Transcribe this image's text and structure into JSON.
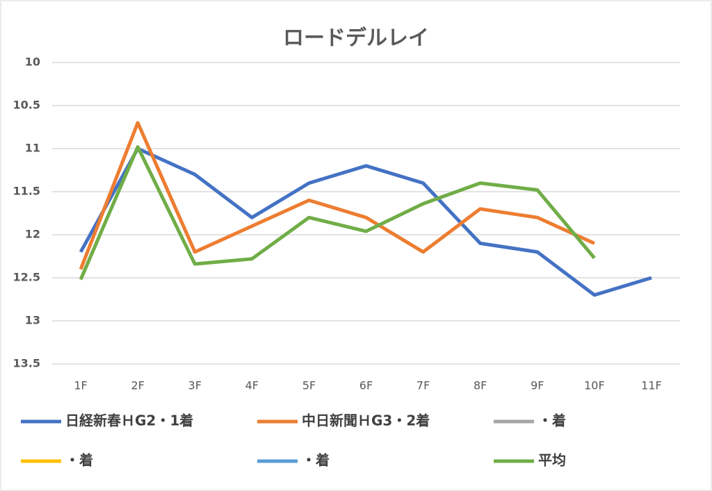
{
  "chart_data": {
    "type": "line",
    "title": "ロードデルレイ",
    "categories": [
      "1F",
      "2F",
      "3F",
      "4F",
      "5F",
      "6F",
      "7F",
      "8F",
      "9F",
      "10F",
      "11F"
    ],
    "series": [
      {
        "name": "日経新春ＨG2・1着",
        "color": "#4472c4",
        "values": [
          12.2,
          11.0,
          11.3,
          11.8,
          11.4,
          11.2,
          11.4,
          12.1,
          12.2,
          12.7,
          12.5
        ]
      },
      {
        "name": "中日新聞ＨG3・2着",
        "color": "#ed7d31",
        "values": [
          12.4,
          10.7,
          12.2,
          11.9,
          11.6,
          11.8,
          12.2,
          11.7,
          11.8,
          12.1,
          null
        ]
      },
      {
        "name": "・着",
        "color": "#a5a5a5",
        "values": [
          null,
          null,
          null,
          null,
          null,
          null,
          null,
          null,
          null,
          null,
          null
        ]
      },
      {
        "name": "・着",
        "color": "#ffc000",
        "values": [
          null,
          null,
          null,
          null,
          null,
          null,
          null,
          null,
          null,
          null,
          null
        ]
      },
      {
        "name": "・着",
        "color": "#5b9bd5",
        "values": [
          null,
          null,
          null,
          null,
          null,
          null,
          null,
          null,
          null,
          null,
          null
        ]
      },
      {
        "name": "平均",
        "color": "#70ad47",
        "values": [
          12.52,
          10.98,
          12.34,
          12.28,
          11.8,
          11.96,
          11.64,
          11.4,
          11.48,
          12.27,
          null
        ]
      }
    ],
    "ylim": [
      10,
      13.5
    ],
    "yticks": [
      10,
      10.5,
      11,
      11.5,
      12,
      12.5,
      13,
      13.5
    ],
    "y_reversed": true,
    "grid": true,
    "legend": "bottom"
  }
}
